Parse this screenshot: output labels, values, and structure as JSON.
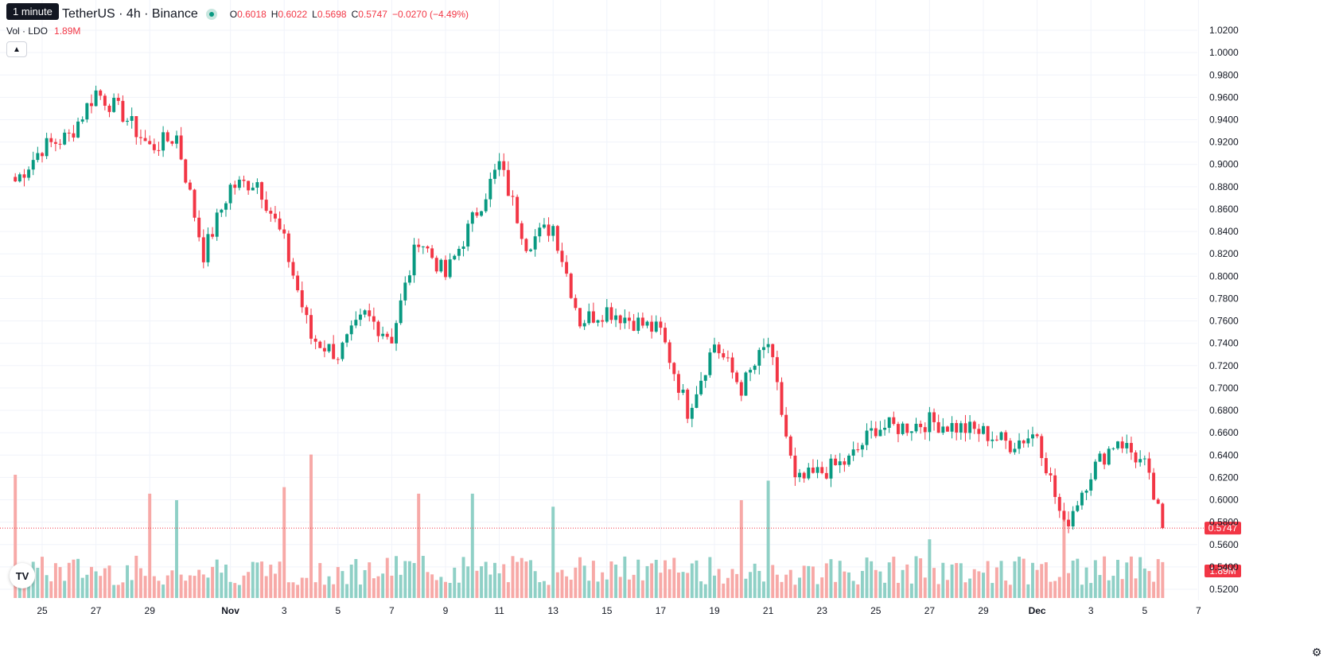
{
  "tooltip": "1 minute",
  "symbol": "TetherUS · 4h · Binance",
  "ohlc": {
    "o_label": "O",
    "o": "0.6018",
    "h_label": "H",
    "h": "0.6022",
    "l_label": "L",
    "l": "0.5698",
    "c_label": "C",
    "c": "0.5747",
    "change": "−0.0270 (−4.49%)"
  },
  "volume": {
    "label": "Vol · LDO",
    "value": "1.89M"
  },
  "icons": {
    "collapse": "chevron-up-icon",
    "logo": "tradingview-logo",
    "settings": "gear-icon"
  },
  "colors": {
    "up": "#089981",
    "down": "#f23645",
    "up_vol": "#8fd0c6",
    "down_vol": "#f7a9a7",
    "grid": "#f0f3fa",
    "text": "#131722",
    "last_price": "#f23645"
  },
  "chart_data": {
    "type": "candlestick",
    "interval": "4h",
    "y_ticks": [
      "1.0200",
      "1.0000",
      "0.9800",
      "0.9600",
      "0.9400",
      "0.9200",
      "0.9000",
      "0.8800",
      "0.8600",
      "0.8400",
      "0.8200",
      "0.8000",
      "0.7800",
      "0.7600",
      "0.7400",
      "0.7200",
      "0.7000",
      "0.6800",
      "0.6600",
      "0.6400",
      "0.6200",
      "0.6000",
      "0.5800",
      "0.5600",
      "0.5400",
      "0.5200"
    ],
    "ylim": [
      0.5136,
      1.0314
    ],
    "x_ticks": [
      "25",
      "27",
      "29",
      "Nov",
      "3",
      "5",
      "7",
      "9",
      "11",
      "13",
      "15",
      "17",
      "19",
      "21",
      "23",
      "25",
      "27",
      "29",
      "Dec",
      "3",
      "5",
      "7"
    ],
    "last_price": "0.5747",
    "last_volume": "1.89M",
    "anchors": [
      [
        "Oct 24",
        0.885
      ],
      [
        "Oct 25",
        0.915
      ],
      [
        "Oct 26",
        0.925
      ],
      [
        "Oct 27",
        0.965
      ],
      [
        "Oct 28",
        0.945
      ],
      [
        "Oct 29",
        0.915
      ],
      [
        "Oct 30",
        0.925
      ],
      [
        "Oct 31",
        0.82
      ],
      [
        "Nov 1",
        0.88
      ],
      [
        "Nov 2",
        0.885
      ],
      [
        "Nov 3",
        0.83
      ],
      [
        "Nov 4",
        0.745
      ],
      [
        "Nov 5",
        0.73
      ],
      [
        "Nov 6",
        0.765
      ],
      [
        "Nov 7",
        0.745
      ],
      [
        "Nov 8",
        0.835
      ],
      [
        "Nov 9",
        0.8
      ],
      [
        "Nov 10",
        0.85
      ],
      [
        "Nov 11",
        0.9
      ],
      [
        "Nov 12",
        0.83
      ],
      [
        "Nov 13",
        0.845
      ],
      [
        "Nov 14",
        0.76
      ],
      [
        "Nov 15",
        0.77
      ],
      [
        "Nov 16",
        0.76
      ],
      [
        "Nov 17",
        0.75
      ],
      [
        "Nov 18",
        0.68
      ],
      [
        "Nov 19",
        0.74
      ],
      [
        "Nov 20",
        0.7
      ],
      [
        "Nov 21",
        0.74
      ],
      [
        "Nov 22",
        0.615
      ],
      [
        "Nov 23",
        0.625
      ],
      [
        "Nov 24",
        0.635
      ],
      [
        "Nov 25",
        0.665
      ],
      [
        "Nov 26",
        0.665
      ],
      [
        "Nov 27",
        0.67
      ],
      [
        "Nov 28",
        0.665
      ],
      [
        "Nov 29",
        0.66
      ],
      [
        "Nov 30",
        0.65
      ],
      [
        "Dec 1",
        0.66
      ],
      [
        "Dec 2",
        0.575
      ],
      [
        "Dec 3",
        0.625
      ],
      [
        "Dec 4",
        0.655
      ],
      [
        "Dec 5",
        0.63
      ],
      [
        "Dec 5 16:00",
        0.5747
      ]
    ],
    "volume_spikes": [
      [
        "Oct 24",
        1.89
      ],
      [
        "Oct 29",
        1.6
      ],
      [
        "Oct 30",
        1.5
      ],
      [
        "Nov 3",
        1.7
      ],
      [
        "Nov 4",
        2.2
      ],
      [
        "Nov 8",
        1.6
      ],
      [
        "Nov 10",
        1.6
      ],
      [
        "Nov 13",
        1.4
      ],
      [
        "Nov 20",
        1.5
      ],
      [
        "Nov 21",
        1.8
      ],
      [
        "Nov 27",
        0.9
      ],
      [
        "Dec 2",
        1.2
      ]
    ]
  }
}
